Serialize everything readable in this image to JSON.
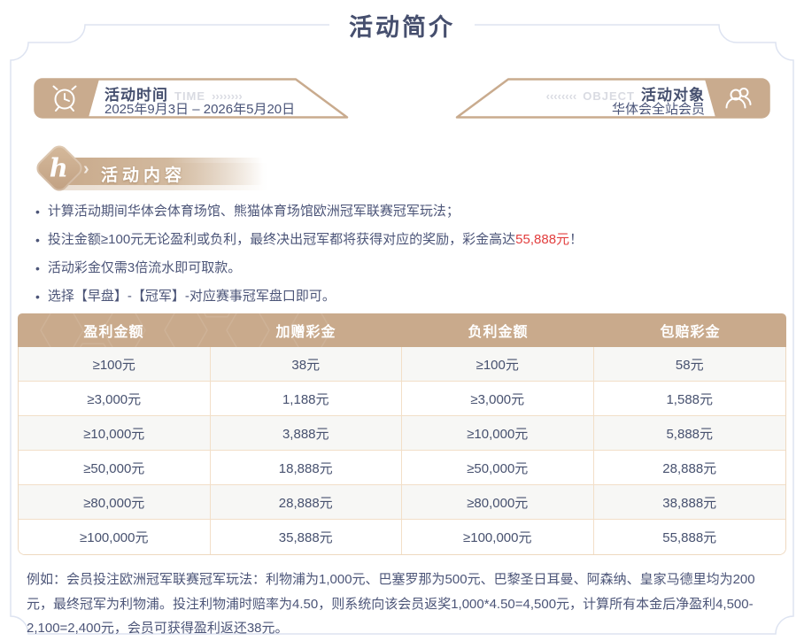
{
  "page": {
    "title": "活动简介"
  },
  "banners": {
    "time": {
      "icon": "alarm-clock-icon",
      "label": "活动时间",
      "tag": "TIME",
      "chevrons": "››››››››",
      "value": "2025年9月3日 – 2026年5月20日"
    },
    "object": {
      "icon": "users-icon",
      "label": "活动对象",
      "tag": "OBJECT",
      "chevrons": "‹‹‹‹‹‹‹‹",
      "value": "华体会全站会员"
    }
  },
  "section": {
    "badge_letter": "h",
    "chevron": "›",
    "title": "活动内容"
  },
  "bullets": [
    {
      "before": "计算活动期间华体会体育场馆、熊猫体育场馆欧洲冠军联赛冠军玩法；",
      "highlight": "",
      "after": ""
    },
    {
      "before": "投注金额≥100元无论盈利或负利，最终决出冠军都将获得对应的奖励，彩金高达",
      "highlight": "55,888元",
      "after": "！"
    },
    {
      "before": "活动彩金仅需3倍流水即可取款。",
      "highlight": "",
      "after": ""
    },
    {
      "before": "选择【早盘】-【冠军】-对应赛事冠军盘口即可。",
      "highlight": "",
      "after": ""
    }
  ],
  "table": {
    "headers": [
      "盈利金额",
      "加赠彩金",
      "负利金额",
      "包赔彩金"
    ],
    "rows": [
      [
        "≥100元",
        "38元",
        "≥100元",
        "58元"
      ],
      [
        "≥3,000元",
        "1,188元",
        "≥3,000元",
        "1,588元"
      ],
      [
        "≥10,000元",
        "3,888元",
        "≥10,000元",
        "5,888元"
      ],
      [
        "≥50,000元",
        "18,888元",
        "≥50,000元",
        "28,888元"
      ],
      [
        "≥80,000元",
        "28,888元",
        "≥80,000元",
        "38,888元"
      ],
      [
        "≥100,000元",
        "35,888元",
        "≥100,000元",
        "55,888元"
      ]
    ]
  },
  "example": {
    "text": "例如：会员投注欧洲冠军联赛冠军玩法：利物浦为1,000元、巴塞罗那为500元、巴黎圣日耳曼、阿森纳、皇家马德里均为200元，最终冠军为利物浦。投注利物浦时赔率为4.50，则系统向该会员返奖1,000*4.50=4,500元，计算所有本金后净盈利4,500-2,100=2,400元，会员可获得盈利返还38元。"
  },
  "colors": {
    "tan": "#c9ab8e",
    "navy": "#464f6e",
    "body_text": "#4c5578",
    "highlight_red": "#e23d3d",
    "table_border": "#f2dfc8",
    "frame_line": "#dde3f1"
  }
}
